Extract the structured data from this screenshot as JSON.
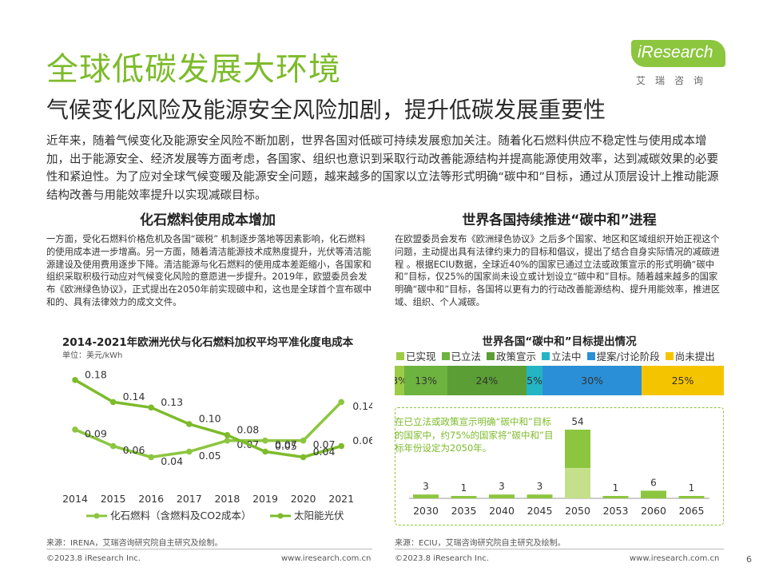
{
  "header": {
    "title": "全球低碳发展大环境",
    "subtitle": "气候变化风险及能源安全风险加剧，提升低碳发展重要性",
    "logo_text": "iResearch",
    "logo_sub": "艾瑞咨询",
    "brand_color": "#8cc63f"
  },
  "intro": "近年来，随着气候变化及能源安全风险不断加剧，世界各国对低碳可持续发展愈加关注。随着化石燃料供应不稳定性与使用成本增加，出于能源安全、经济发展等方面考虑，各国家、组织也意识到采取行动改善能源结构并提高能源使用效率，达到减碳效果的必要性和紧迫性。为了应对全球气候变暖及能源安全问题，越来越多的国家以立法等形式明确“碳中和”目标，通过从顶层设计上推动能源结构改善与用能效率提升以实现减碳目标。",
  "left": {
    "section_title": "化石燃料使用成本增加",
    "paragraph": "一方面，受化石燃料价格危机及各国“碳税” 机制逐步落地等因素影响，化石燃料的使用成本进一步增高。另一方面，随着清洁能源技术成熟度提升，光伏等清洁能源建设及使用费用逐步下降。清洁能源与化石燃料的使用成本差距缩小，各国家和组织采取积极行动应对气候变化风险的意愿进一步提升。2019年，欧盟委员会发布《欧洲绿色协议》，正式提出在2050年前实现碳中和，这也是全球首个宣布碳中和的、具有法律效力的成文文件。",
    "chart_title": "2014-2021年欧洲光伏与化石燃料加权平均平准化度电成本",
    "unit": "单位：美元/kWh",
    "source": "来源：IRENA，艾瑞咨询研究院自主研究及绘制。"
  },
  "right": {
    "section_title": "世界各国持续推进“碳中和”进程",
    "paragraph": "在欧盟委员会发布《欧洲绿色协议》之后多个国家、地区和区域组织开始正视这个问题，主动提出具有法律约束力的目标和倡议，提出了结合自身实际情况的减碳进程 。根据ECIU数据，全球近40%的国家已通过立法或政策宣示的形式明确“碳中和”目标，仅25%的国家尚未设立或计划设立“碳中和”目标。随着越来越多的国家明确“碳中和”目标，各国将以更有力的行动改善能源结构、提升用能效率，推进区域、组织、个人减碳。",
    "chart_title": "世界各国“碳中和”目标提出情况",
    "callout": "在已立法或政策宣示明确“碳中和”目标的国家中，约75%的国家将“碳中和”目标年份设定为2050年。",
    "source": "来源：ECIU，艾瑞咨询研究院自主研究及绘制。"
  },
  "footer": {
    "copyright": "©2023.8 iResearch Inc.",
    "url": "www.iresearch.com.cn",
    "page": "6"
  },
  "chart_data": [
    {
      "type": "line",
      "title": "2014-2021年欧洲光伏与化石燃料加权平均平准化度电成本",
      "ylabel": "单位：美元/kWh",
      "x": [
        "2014",
        "2015",
        "2016",
        "2017",
        "2018",
        "2019",
        "2020",
        "2021"
      ],
      "series": [
        {
          "name": "化石燃料（含燃料及CO2成本）",
          "values": [
            0.09,
            0.06,
            0.04,
            0.05,
            0.07,
            0.07,
            0.07,
            0.14
          ],
          "labels": [
            "0.09",
            "0.06",
            "0.04",
            "0.05",
            "0.07",
            "0.07",
            "0.07",
            "0.14"
          ],
          "color": "#8cc63f",
          "marker": "circle"
        },
        {
          "name": "太阳能光伏",
          "values": [
            0.18,
            0.14,
            0.13,
            0.1,
            0.08,
            0.05,
            0.04,
            0.06
          ],
          "labels": [
            "0.18",
            "0.14",
            "0.13",
            "0.10",
            "0.08",
            "0.05",
            "0.04",
            "0.06"
          ],
          "color": "#7dbb2b",
          "marker": "circle"
        }
      ],
      "ylim": [
        0,
        0.2
      ],
      "grid": false,
      "legend": "bottom"
    },
    {
      "type": "bar",
      "stacked": true,
      "orientation": "horizontal",
      "title": "世界各国“碳中和”目标提出情况",
      "categories": [
        "已实现",
        "已立法",
        "政策宣示",
        "立法中",
        "提案/讨论阶段",
        "尚未提出"
      ],
      "values": [
        3,
        13,
        24,
        5,
        30,
        25
      ],
      "labels": [
        "3%",
        "13%",
        "24%",
        "5%",
        "30%",
        "25%"
      ],
      "unit": "%",
      "colors": [
        "#9ccc47",
        "#6db33f",
        "#5a9e35",
        "#24b5c4",
        "#2a8fd6",
        "#f5c400"
      ],
      "legend": "top"
    },
    {
      "type": "bar",
      "categories": [
        "2030",
        "2035",
        "2040",
        "2045",
        "2050",
        "2053",
        "2060",
        "2065"
      ],
      "values": [
        3,
        1,
        3,
        3,
        54,
        1,
        6,
        1
      ],
      "colors": [
        "#8cc63f",
        "#c5e08a"
      ],
      "highlight_category": "2050"
    }
  ]
}
